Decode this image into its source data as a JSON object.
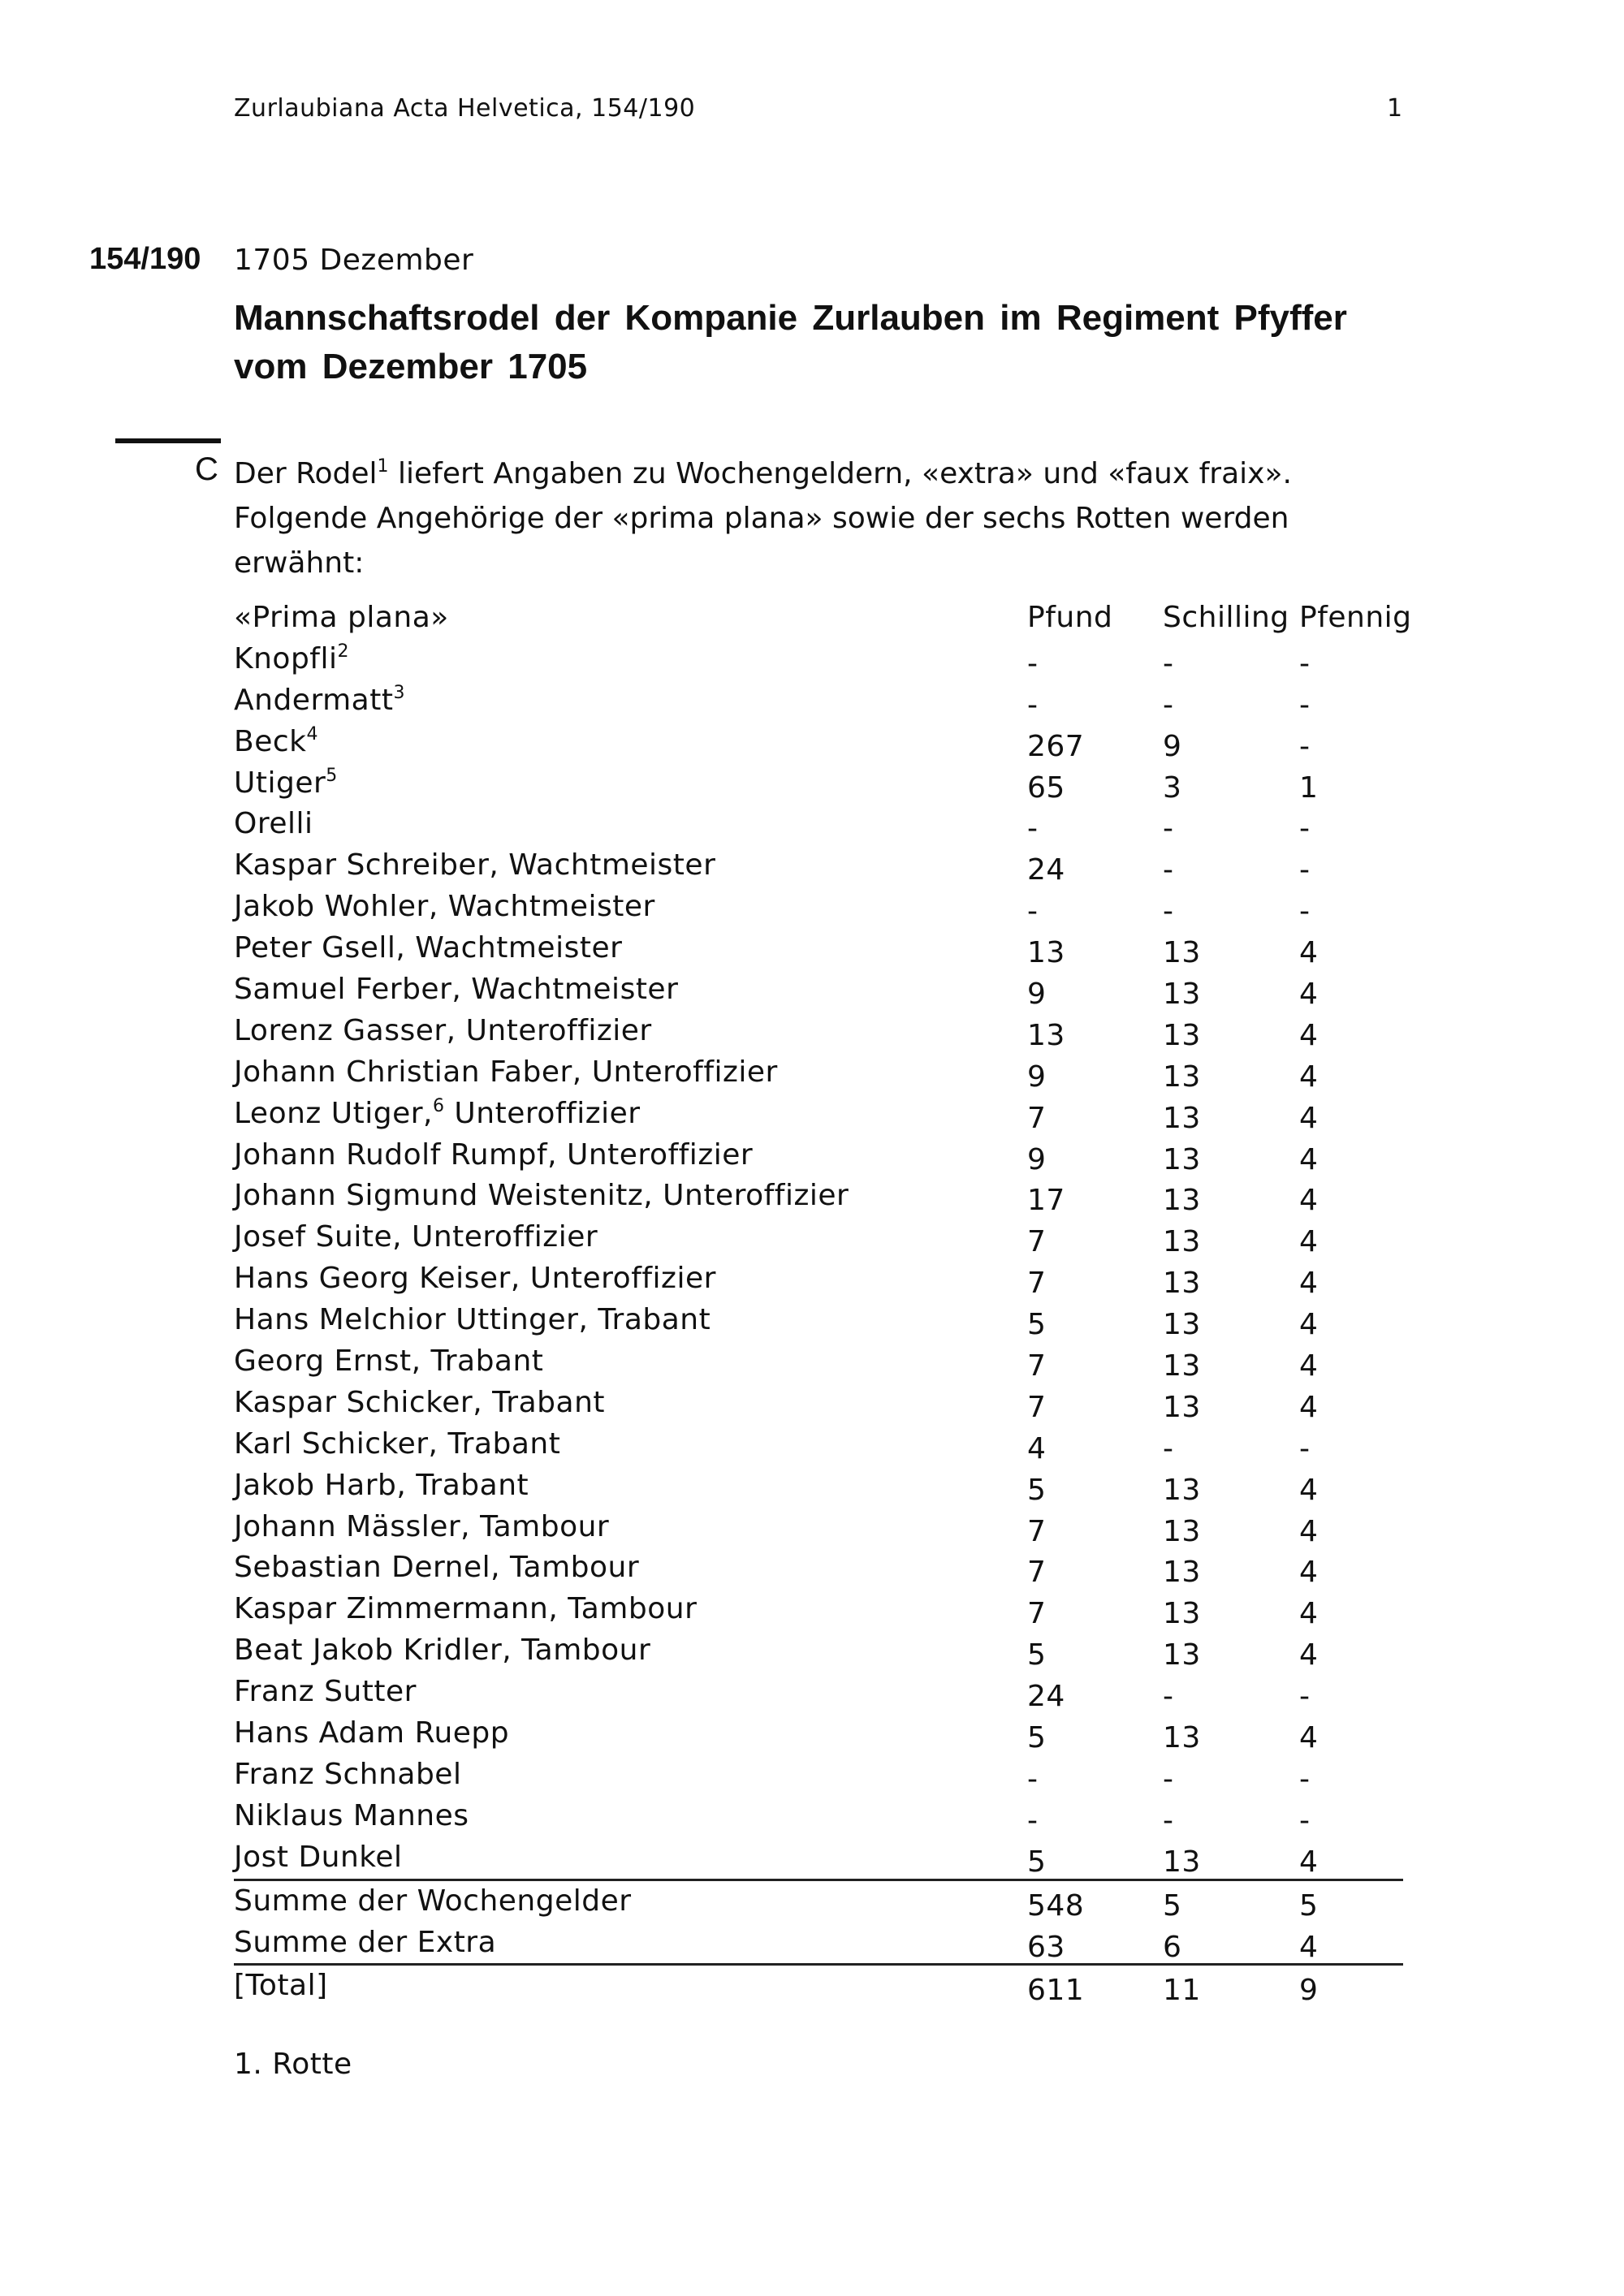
{
  "header": {
    "running_head": "Zurlaubiana Acta Helvetica, 154/190",
    "page_number": "1"
  },
  "document": {
    "number": "154/190",
    "date": "1705 Dezember",
    "title": "Mannschaftsrodel der Kompanie Zurlauben im Regiment Pfyffer vom Dezember 1705",
    "marker": "C",
    "body": {
      "line1_a": "Der Rodel",
      "fn1": "1",
      "line1_b": " liefert Angaben zu Wochengeldern, «extra» und «faux fraix».",
      "line2": "Folgende Angehörige der «prima plana» sowie der sechs Rotten werden erwähnt:"
    }
  },
  "table": {
    "headers": [
      "«Prima plana»",
      "Pfund",
      "Schilling",
      "Pfennig"
    ],
    "rows": [
      {
        "name": "Knopfli",
        "fn": "2",
        "pfund": "-",
        "schilling": "-",
        "pfennig": "-"
      },
      {
        "name": "Andermatt",
        "fn": "3",
        "pfund": "-",
        "schilling": "-",
        "pfennig": "-"
      },
      {
        "name": "Beck",
        "fn": "4",
        "pfund": "267",
        "schilling": "9",
        "pfennig": "-"
      },
      {
        "name": "Utiger",
        "fn": "5",
        "pfund": "65",
        "schilling": "3",
        "pfennig": "1"
      },
      {
        "name": "Orelli",
        "pfund": "-",
        "schilling": "-",
        "pfennig": "-"
      },
      {
        "name": "Kaspar Schreiber, Wachtmeister",
        "pfund": "24",
        "schilling": "-",
        "pfennig": "-"
      },
      {
        "name": "Jakob Wohler, Wachtmeister",
        "pfund": "-",
        "schilling": "-",
        "pfennig": "-"
      },
      {
        "name": "Peter Gsell, Wachtmeister",
        "pfund": "13",
        "schilling": "13",
        "pfennig": "4"
      },
      {
        "name": "Samuel Ferber, Wachtmeister",
        "pfund": "9",
        "schilling": "13",
        "pfennig": "4"
      },
      {
        "name": "Lorenz Gasser, Unteroffizier",
        "pfund": "13",
        "schilling": "13",
        "pfennig": "4"
      },
      {
        "name": "Johann Christian Faber, Unteroffizier",
        "pfund": "9",
        "schilling": "13",
        "pfennig": "4"
      },
      {
        "name": "Leonz Utiger,",
        "fn": "6",
        "name_after": " Unteroffizier",
        "pfund": "7",
        "schilling": "13",
        "pfennig": "4"
      },
      {
        "name": "Johann Rudolf Rumpf, Unteroffizier",
        "pfund": "9",
        "schilling": "13",
        "pfennig": "4"
      },
      {
        "name": "Johann Sigmund Weistenitz, Unteroffizier",
        "pfund": "17",
        "schilling": "13",
        "pfennig": "4"
      },
      {
        "name": "Josef Suite, Unteroffizier",
        "pfund": "7",
        "schilling": "13",
        "pfennig": "4"
      },
      {
        "name": "Hans Georg Keiser, Unteroffizier",
        "pfund": "7",
        "schilling": "13",
        "pfennig": "4"
      },
      {
        "name": "Hans Melchior Uttinger, Trabant",
        "pfund": "5",
        "schilling": "13",
        "pfennig": "4"
      },
      {
        "name": "Georg Ernst, Trabant",
        "pfund": "7",
        "schilling": "13",
        "pfennig": "4"
      },
      {
        "name": "Kaspar Schicker, Trabant",
        "pfund": "7",
        "schilling": "13",
        "pfennig": "4"
      },
      {
        "name": "Karl Schicker, Trabant",
        "pfund": "4",
        "schilling": "-",
        "pfennig": "-"
      },
      {
        "name": "Jakob Harb, Trabant",
        "pfund": "5",
        "schilling": "13",
        "pfennig": "4"
      },
      {
        "name": "Johann Mässler, Tambour",
        "pfund": "7",
        "schilling": "13",
        "pfennig": "4"
      },
      {
        "name": "Sebastian Dernel, Tambour",
        "pfund": "7",
        "schilling": "13",
        "pfennig": "4"
      },
      {
        "name": "Kaspar Zimmermann, Tambour",
        "pfund": "7",
        "schilling": "13",
        "pfennig": "4"
      },
      {
        "name": "Beat Jakob Kridler, Tambour",
        "pfund": "5",
        "schilling": "13",
        "pfennig": "4"
      },
      {
        "name": "Franz Sutter",
        "pfund": "24",
        "schilling": "-",
        "pfennig": "-"
      },
      {
        "name": "Hans Adam Ruepp",
        "pfund": "5",
        "schilling": "13",
        "pfennig": "4"
      },
      {
        "name": "Franz Schnabel",
        "pfund": "-",
        "schilling": "-",
        "pfennig": "-"
      },
      {
        "name": "Niklaus Mannes",
        "pfund": "-",
        "schilling": "-",
        "pfennig": "-"
      },
      {
        "name": "Jost Dunkel",
        "pfund": "5",
        "schilling": "13",
        "pfennig": "4"
      }
    ],
    "sums": [
      {
        "name": "Summe der Wochengelder",
        "pfund": "548",
        "schilling": "5",
        "pfennig": "5",
        "ruled": true
      },
      {
        "name": "Summe der Extra",
        "pfund": "63",
        "schilling": "6",
        "pfennig": "4"
      },
      {
        "name": "[Total]",
        "pfund": "611",
        "schilling": "11",
        "pfennig": "9",
        "ruled": true
      }
    ]
  },
  "next_section": "1. Rotte"
}
